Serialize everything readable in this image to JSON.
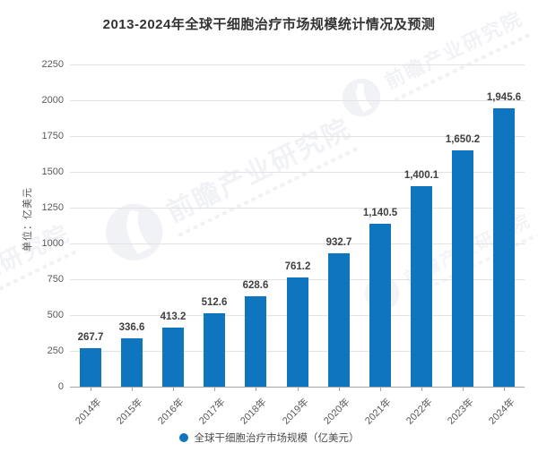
{
  "title": "2013-2024年全球干细胞治疗市场规模统计情况及预测",
  "y_axis": {
    "unit_label": "单位：亿美元"
  },
  "legend": {
    "label": "全球干细胞治疗市场规模（亿美元）",
    "marker_color": "#0f75bf"
  },
  "watermark": {
    "text": "前瞻产业研究院"
  },
  "colors": {
    "bar": "#0f75bf",
    "title_text": "#333333",
    "axis_text": "#595959",
    "gridline": "#e3e3e3",
    "axis_line": "#a6a6a6"
  },
  "chart_data": {
    "type": "bar",
    "title": "2013-2024年全球干细胞治疗市场规模统计情况及预测",
    "categories": [
      "2014年",
      "2015年",
      "2016年",
      "2017年",
      "2018年",
      "2019年",
      "2020年",
      "2021年",
      "2022年",
      "2023年",
      "2024年"
    ],
    "values": [
      267.7,
      336.6,
      413.2,
      512.6,
      628.6,
      761.2,
      932.7,
      1140.5,
      1400.1,
      1650.2,
      1945.6
    ],
    "value_labels": [
      "267.7",
      "336.6",
      "413.2",
      "512.6",
      "628.6",
      "761.2",
      "932.7",
      "1,140.5",
      "1,400.1",
      "1,650.2",
      "1,945.6"
    ],
    "xlabel": "",
    "ylabel": "单位：亿美元",
    "ylim": [
      0,
      2250
    ],
    "yticks": [
      0,
      250,
      500,
      750,
      1000,
      1250,
      1500,
      1750,
      2000,
      2250
    ],
    "grid": true,
    "legend_entries": [
      "全球干细胞治疗市场规模（亿美元）"
    ],
    "legend_position": "bottom",
    "bar_color": "#0f75bf"
  }
}
